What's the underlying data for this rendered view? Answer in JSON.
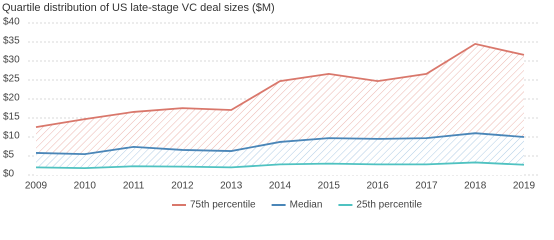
{
  "chart_data": {
    "type": "line",
    "title": "Quartile distribution of US late-stage VC deal sizes ($M)",
    "categories": [
      "2009",
      "2010",
      "2011",
      "2012",
      "2013",
      "2014",
      "2015",
      "2016",
      "2017",
      "2018",
      "2019"
    ],
    "series": [
      {
        "name": "75th percentile",
        "color": "#d9776b",
        "values": [
          12.6,
          14.7,
          16.6,
          17.6,
          17.1,
          24.7,
          26.6,
          24.7,
          26.6,
          34.5,
          31.6
        ]
      },
      {
        "name": "Median",
        "color": "#4a86b8",
        "values": [
          5.8,
          5.5,
          7.4,
          6.6,
          6.3,
          8.7,
          9.7,
          9.5,
          9.7,
          11,
          10
        ]
      },
      {
        "name": "25th percentile",
        "color": "#4fc2c1",
        "values": [
          2,
          1.8,
          2.3,
          2.2,
          2,
          2.8,
          3,
          2.8,
          2.8,
          3.3,
          2.7
        ]
      }
    ],
    "ylim": [
      0,
      40
    ],
    "yticks": [
      {
        "value": 0,
        "label": "$0"
      },
      {
        "value": 5,
        "label": "$5"
      },
      {
        "value": 10,
        "label": "$10"
      },
      {
        "value": 15,
        "label": "$15"
      },
      {
        "value": 20,
        "label": "$20"
      },
      {
        "value": 25,
        "label": "$25"
      },
      {
        "value": 30,
        "label": "$30"
      },
      {
        "value": 35,
        "label": "$35"
      },
      {
        "value": 40,
        "label": "$40"
      }
    ],
    "grid": true,
    "legend": "bottom"
  }
}
